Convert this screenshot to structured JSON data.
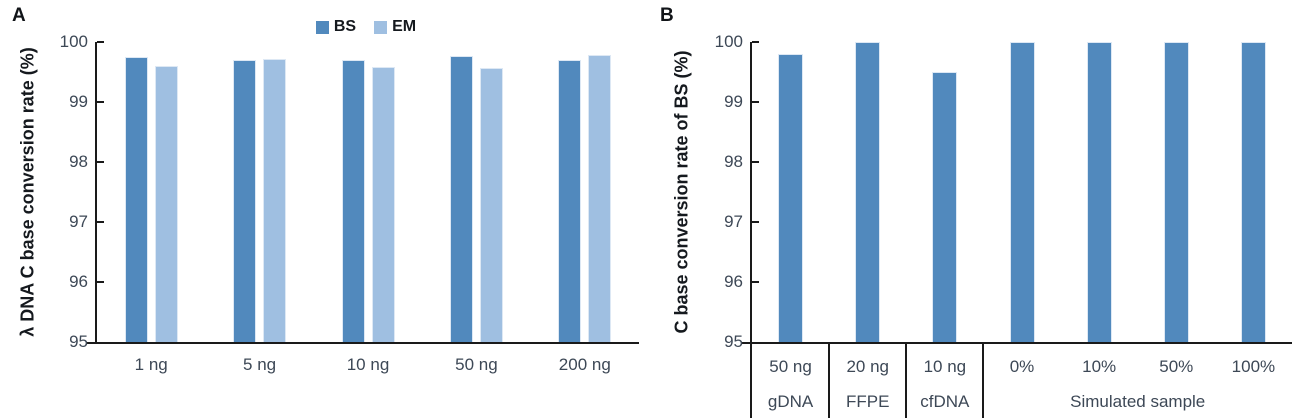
{
  "figure": {
    "colors": {
      "bs_bar": "#5189bd",
      "em_bar": "#9fbfe1",
      "bar_border": "#dde8f4",
      "axis_line": "#1a1a1a",
      "tick_text": "#3d4856",
      "title_text": "#15191e"
    },
    "panels": [
      {
        "letter": "A",
        "y_axis_title": "λ DNA C base conversion rate (%)",
        "legend": {
          "position": "top-center",
          "items": [
            {
              "label": "BS",
              "color": "#5189bd"
            },
            {
              "label": "EM",
              "color": "#9fbfe1"
            }
          ]
        },
        "chart_data": {
          "type": "bar",
          "categories": [
            "1 ng",
            "5 ng",
            "10 ng",
            "50 ng",
            "200 ng"
          ],
          "series": [
            {
              "name": "BS",
              "color": "#5189bd",
              "values": [
                99.75,
                99.7,
                99.7,
                99.77,
                99.7
              ]
            },
            {
              "name": "EM",
              "color": "#9fbfe1",
              "values": [
                99.6,
                99.72,
                99.58,
                99.57,
                99.79
              ]
            }
          ],
          "title": "",
          "xlabel": "",
          "ylabel": "λ DNA C base conversion rate (%)",
          "ylim": [
            95,
            100
          ],
          "yticks": [
            95,
            96,
            97,
            98,
            99,
            100
          ],
          "grid": false,
          "legend_position": "top-center"
        }
      },
      {
        "letter": "B",
        "y_axis_title": "C base conversion rate of BS (%)",
        "chart_data": {
          "type": "bar",
          "categories": [
            "50 ng gDNA",
            "20 ng FFPE",
            "10 ng cfDNA",
            "0%",
            "10%",
            "50%",
            "100%"
          ],
          "series": [
            {
              "name": "BS",
              "color": "#5189bd",
              "values": [
                99.8,
                100,
                99.5,
                100,
                100,
                100,
                100
              ]
            }
          ],
          "title": "",
          "xlabel": "",
          "ylabel": "C base conversion rate of BS (%)",
          "ylim": [
            95,
            100
          ],
          "yticks": [
            95,
            96,
            97,
            98,
            99,
            100
          ],
          "grid": false,
          "x_table": {
            "top_row": [
              "50 ng",
              "20 ng",
              "10 ng",
              "0%",
              "10%",
              "50%",
              "100%"
            ],
            "bottom_row": [
              {
                "label": "gDNA",
                "span": 1
              },
              {
                "label": "FFPE",
                "span": 1
              },
              {
                "label": "cfDNA",
                "span": 1
              },
              {
                "label": "Simulated sample",
                "span": 4
              }
            ]
          }
        }
      }
    ]
  }
}
